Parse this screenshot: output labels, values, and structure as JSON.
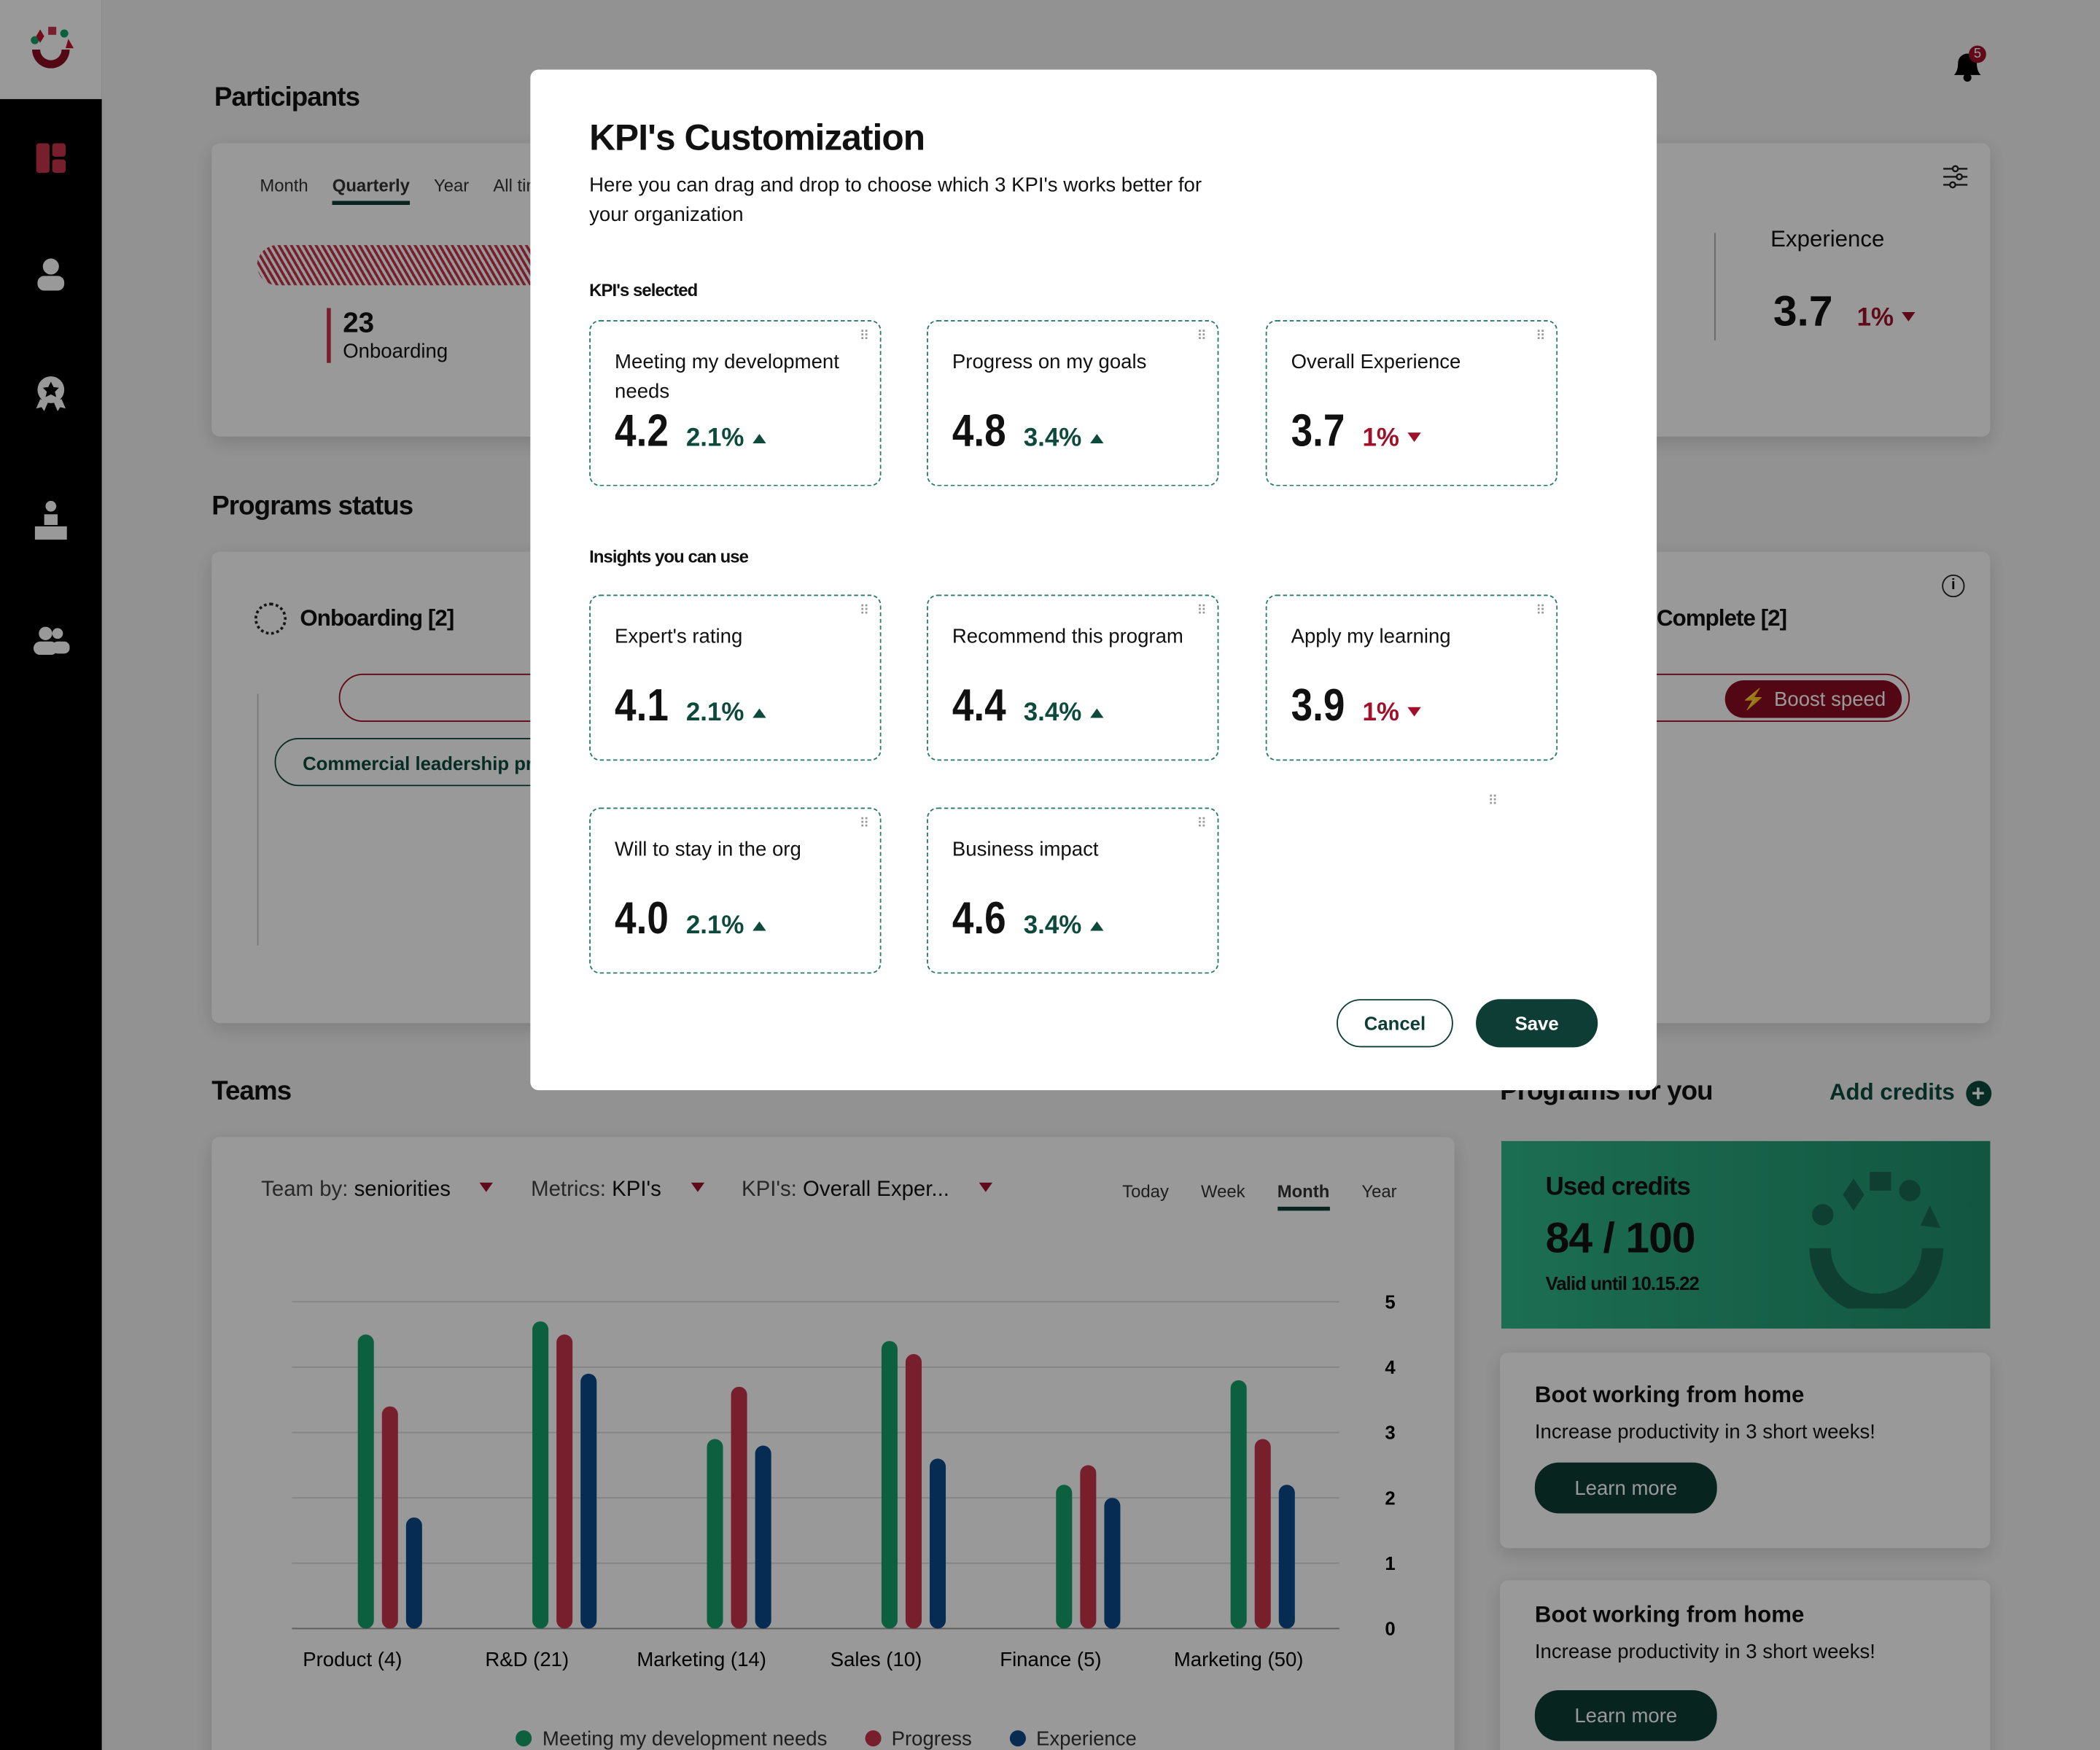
{
  "colors": {
    "accent_green": "#0d4a3c",
    "accent_red": "#a0102a",
    "series_green": "#14a06a",
    "series_red": "#c8344e",
    "series_blue": "#0a4a8a"
  },
  "notifications": {
    "count": "5",
    "icon": "bell-icon"
  },
  "sidebar": {
    "items": [
      {
        "icon": "dashboard-icon"
      },
      {
        "icon": "user-icon"
      },
      {
        "icon": "award-icon"
      },
      {
        "icon": "presenter-icon"
      },
      {
        "icon": "group-icon"
      }
    ]
  },
  "participants": {
    "title": "Participants",
    "tabs": [
      "Month",
      "Quarterly",
      "Year",
      "All time"
    ],
    "active_tab": "Quarterly",
    "stat_value": "23",
    "stat_label": "Onboarding"
  },
  "kpi_panel": {
    "label": "Experience",
    "value": "3.7",
    "change": "1%"
  },
  "programs_status": {
    "title": "Programs status",
    "onboarding": "Onboarding [2]",
    "complete": "Complete [2]",
    "program_pill": "Commercial leadership pro",
    "boost": "Boost speed"
  },
  "teams": {
    "title": "Teams",
    "filters": [
      {
        "label": "Team by:",
        "value": "seniorities"
      },
      {
        "label": "Metrics:",
        "value": "KPI's"
      },
      {
        "label": "KPI's:",
        "value": "Overall Exper..."
      }
    ],
    "periods": [
      "Today",
      "Week",
      "Month",
      "Year"
    ],
    "active_period": "Month"
  },
  "chart_data": {
    "type": "bar",
    "categories": [
      "Product (4)",
      "R&D (21)",
      "Marketing (14)",
      "Sales (10)",
      "Finance (5)",
      "Marketing (50)"
    ],
    "ylim": [
      0,
      5
    ],
    "yticks": [
      "0",
      "1",
      "2",
      "3",
      "4",
      "5"
    ],
    "grid": true,
    "legend_placement": "bottom",
    "series": [
      {
        "name": "Meeting my development needs",
        "values": [
          4.5,
          4.7,
          2.9,
          4.4,
          2.2,
          3.8
        ]
      },
      {
        "name": "Progress",
        "values": [
          3.4,
          4.5,
          3.7,
          4.2,
          2.5,
          2.9
        ]
      },
      {
        "name": "Experience",
        "values": [
          1.7,
          3.9,
          2.8,
          2.6,
          2.0,
          2.2
        ]
      }
    ]
  },
  "programs_for_you": {
    "title": "Programs for you",
    "add_credits": "Add credits",
    "credits_label": "Used credits",
    "credits_value": "84 / 100",
    "valid": "Valid until 10.15.22",
    "items": [
      {
        "title": "Boot working from home",
        "desc": "Increase productivity in 3 short weeks!",
        "cta": "Learn more"
      },
      {
        "title": "Boot working from home",
        "desc": "Increase productivity in 3 short weeks!",
        "cta": "Learn more"
      }
    ]
  },
  "modal": {
    "title": "KPI's Customization",
    "desc": "Here you can drag and drop to choose which 3 KPI's works better for your organization",
    "selected_heading": "KPI's selected",
    "insights_heading": "Insights you can use",
    "selected": [
      {
        "label": "Meeting my development needs",
        "value": "4.2",
        "change": "2.1%",
        "dir": "up"
      },
      {
        "label": "Progress on my goals",
        "value": "4.8",
        "change": "3.4%",
        "dir": "up"
      },
      {
        "label": "Overall Experience",
        "value": "3.7",
        "change": "1%",
        "dir": "down"
      }
    ],
    "insights": [
      {
        "label": "Expert's rating",
        "value": "4.1",
        "change": "2.1%",
        "dir": "up"
      },
      {
        "label": "Recommend this program",
        "value": "4.4",
        "change": "3.4%",
        "dir": "up"
      },
      {
        "label": "Apply my learning",
        "value": "3.9",
        "change": "1%",
        "dir": "down"
      },
      {
        "label": "Will to stay in the org",
        "value": "4.0",
        "change": "2.1%",
        "dir": "up"
      },
      {
        "label": "Business impact",
        "value": "4.6",
        "change": "3.4%",
        "dir": "up"
      }
    ],
    "cancel": "Cancel",
    "save": "Save"
  }
}
